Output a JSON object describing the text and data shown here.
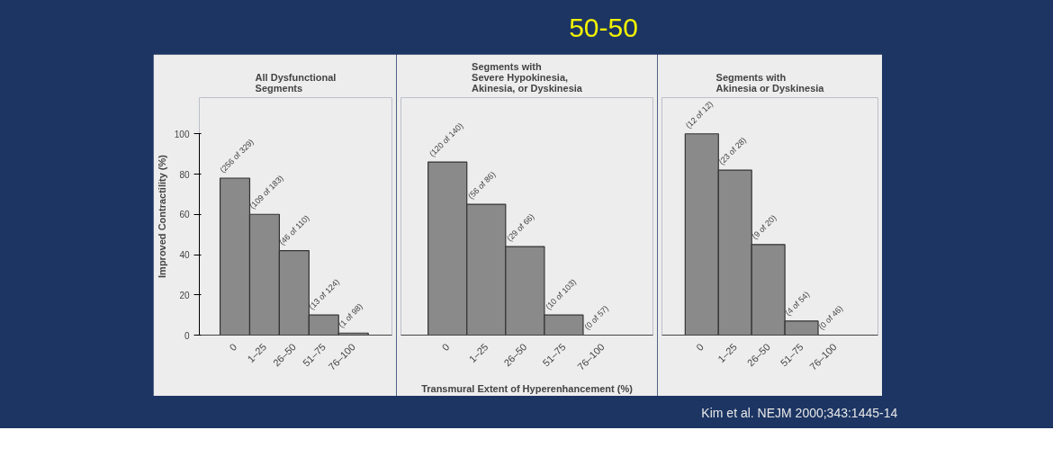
{
  "chart_data": [
    {
      "type": "other",
      "title": "50-50",
      "annotations": [
        "Kim et al. NEJM 2000;343:1445-14"
      ]
    },
    {
      "type": "bar",
      "subtitle": "All Dysfunctional\nSegments",
      "ylabel": "Improved Contractility (%)",
      "categories": [
        "0",
        "1–25",
        "26–50",
        "51–75",
        "76–100"
      ],
      "values": [
        78,
        60,
        42,
        10,
        1
      ],
      "color": "#8a8a8a",
      "value_labels": [
        "(256 of 329)",
        "(109 of 183)",
        "(46 of 110)",
        "(13 of 124)",
        "(1 of 98)"
      ],
      "ylim": [
        0,
        100
      ],
      "yticks": [
        0,
        20,
        40,
        60,
        80,
        100
      ],
      "grid": false
    },
    {
      "type": "bar",
      "subtitle": "Segments with\nSevere Hypokinesia,\nAkinesia, or Dyskinesia",
      "xlabel": "Transmural Extent of Hyperenhancement (%)",
      "categories": [
        "0",
        "1–25",
        "26–50",
        "51–75",
        "76–100"
      ],
      "values": [
        86,
        65,
        44,
        10,
        0
      ],
      "color": "#8a8a8a",
      "value_labels": [
        "(120 of 140)",
        "(56 of 86)",
        "(29 of 66)",
        "(10 of 103)",
        "(0 of 57)"
      ],
      "ylim": [
        0,
        100
      ],
      "yticks": [
        0,
        20,
        40,
        60,
        80,
        100
      ],
      "tick_labels": "x",
      "grid": false
    },
    {
      "type": "bar",
      "subtitle": "Segments with\nAkinesia or Dyskinesia",
      "categories": [
        "0",
        "1–25",
        "26–50",
        "51–75",
        "76–100"
      ],
      "values": [
        100,
        82,
        45,
        7,
        0
      ],
      "color": "#8a8a8a",
      "value_labels": [
        "(12 of 12)",
        "(23 of 28)",
        "(9 of 20)",
        "(4 of 54)",
        "(0 of 46)"
      ],
      "ylim": [
        0,
        100
      ],
      "yticks": [
        0,
        20,
        40,
        60,
        80,
        100
      ],
      "tick_labels": "x",
      "grid": false
    }
  ]
}
